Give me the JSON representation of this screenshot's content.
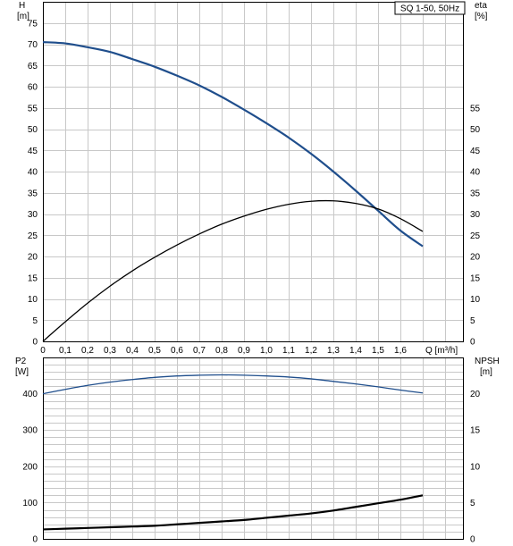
{
  "chart_data": [
    {
      "type": "line",
      "title": "SQ 1-50, 50Hz",
      "xlabel": "Q [m³/h]",
      "x_ticks": [
        "0",
        "0,1",
        "0,2",
        "0,3",
        "0,4",
        "0,5",
        "0,6",
        "0,7",
        "0,8",
        "0,9",
        "1,0",
        "1,1",
        "1,2",
        "1,3",
        "1,4",
        "1,5",
        "1,6"
      ],
      "xlim": [
        0,
        1.88
      ],
      "y_left_label": [
        "H",
        "[m]"
      ],
      "y_left_ticks": [
        "0",
        "5",
        "10",
        "15",
        "20",
        "25",
        "30",
        "35",
        "40",
        "45",
        "50",
        "55",
        "60",
        "65",
        "70",
        "75"
      ],
      "y_left_lim": [
        0,
        80
      ],
      "y_right_label": [
        "eta",
        "[%]"
      ],
      "y_right_ticks": [
        "0",
        "5",
        "10",
        "15",
        "20",
        "25",
        "30",
        "35",
        "40",
        "45",
        "50",
        "55"
      ],
      "y_right_lim": [
        0,
        80
      ],
      "grid": true,
      "series": [
        {
          "axis": "left",
          "color": "#1f4e8c",
          "x": [
            0,
            0.1,
            0.2,
            0.3,
            0.4,
            0.5,
            0.6,
            0.7,
            0.8,
            0.9,
            1.0,
            1.1,
            1.2,
            1.3,
            1.4,
            1.5,
            1.6,
            1.7
          ],
          "y": [
            70.5,
            70.2,
            69.3,
            68.2,
            66.5,
            64.7,
            62.6,
            60.3,
            57.6,
            54.6,
            51.4,
            48.0,
            44.2,
            40.0,
            35.5,
            30.8,
            26.1,
            22.4
          ]
        },
        {
          "axis": "right",
          "color": "#000000",
          "x": [
            0,
            0.1,
            0.2,
            0.3,
            0.4,
            0.5,
            0.6,
            0.7,
            0.8,
            0.9,
            1.0,
            1.1,
            1.2,
            1.3,
            1.4,
            1.5,
            1.6,
            1.7
          ],
          "y": [
            0,
            4.6,
            9.0,
            13.0,
            16.6,
            19.8,
            22.7,
            25.3,
            27.6,
            29.5,
            31.1,
            32.3,
            33.0,
            33.1,
            32.5,
            31.2,
            28.9,
            25.9
          ]
        }
      ]
    },
    {
      "type": "line",
      "y_left_label": [
        "P2",
        "[W]"
      ],
      "y_left_ticks": [
        "0",
        "100",
        "200",
        "300",
        "400"
      ],
      "y_left_lim": [
        0,
        500
      ],
      "y_right_label": [
        "NPSH",
        "[m]"
      ],
      "y_right_ticks": [
        "0",
        "5",
        "10",
        "15",
        "20"
      ],
      "y_right_lim": [
        0,
        25
      ],
      "grid": true,
      "series": [
        {
          "axis": "left",
          "color": "#1f4e8c",
          "x": [
            0,
            0.1,
            0.2,
            0.3,
            0.4,
            0.5,
            0.6,
            0.7,
            0.8,
            0.9,
            1.0,
            1.1,
            1.2,
            1.3,
            1.4,
            1.5,
            1.6,
            1.7
          ],
          "y": [
            400,
            412,
            423,
            432,
            439,
            445,
            449,
            451,
            452,
            451,
            449,
            446,
            441,
            434,
            427,
            419,
            410,
            402
          ]
        },
        {
          "axis": "right",
          "color": "#000000",
          "x": [
            0,
            0.1,
            0.2,
            0.3,
            0.4,
            0.5,
            0.6,
            0.7,
            0.8,
            0.9,
            1.0,
            1.1,
            1.2,
            1.3,
            1.4,
            1.5,
            1.6,
            1.7
          ],
          "y": [
            1.3,
            1.4,
            1.5,
            1.6,
            1.7,
            1.8,
            2.0,
            2.2,
            2.4,
            2.6,
            2.9,
            3.2,
            3.5,
            3.9,
            4.4,
            4.9,
            5.4,
            6.0
          ]
        }
      ]
    }
  ]
}
